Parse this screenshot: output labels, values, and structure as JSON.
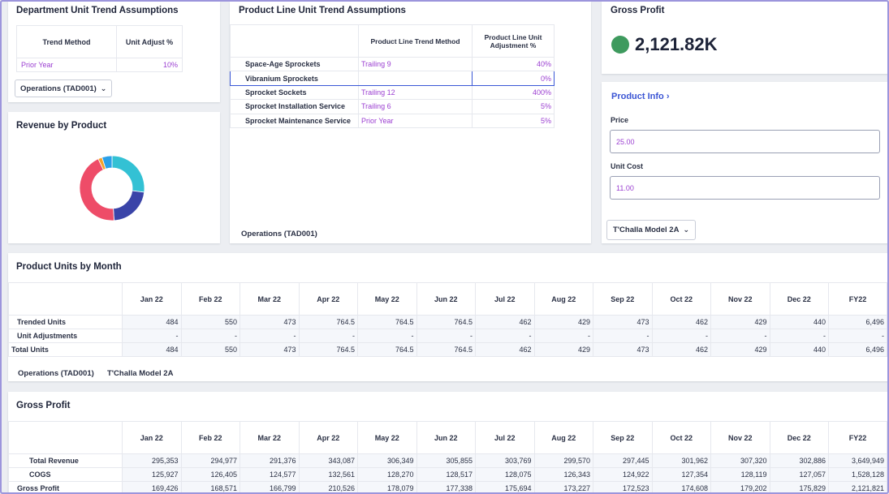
{
  "dept_trend": {
    "title": "Department Unit Trend Assumptions",
    "headers": [
      "Trend Method",
      "Unit Adjust %"
    ],
    "row": {
      "method": "Prior Year",
      "adjust": "10%"
    },
    "dropdown": "Operations (TAD001)"
  },
  "revenue": {
    "title": "Revenue by Product"
  },
  "product_line": {
    "title": "Product Line Unit Trend Assumptions",
    "headers": [
      "",
      "Product Line Trend Method",
      "Product Line Unit Adjustment %"
    ],
    "rows": [
      {
        "name": "Space-Age Sprockets",
        "method": "Trailing 9",
        "adjust": "40%"
      },
      {
        "name": "Vibranium Sprockets",
        "method": "",
        "adjust": "0%"
      },
      {
        "name": "Sprocket Sockets",
        "method": "Trailing 12",
        "adjust": "400%"
      },
      {
        "name": "Sprocket Installation Service",
        "method": "Trailing 6",
        "adjust": "5%"
      },
      {
        "name": "Sprocket Maintenance Service",
        "method": "Prior Year",
        "adjust": "5%"
      }
    ],
    "footer": "Operations (TAD001)"
  },
  "gross_profit_kpi": {
    "title": "Gross Profit",
    "value": "2,121.82K",
    "status_color": "#3e9a5e"
  },
  "product_info": {
    "link": "Product Info",
    "price_label": "Price",
    "price_value": "25.00",
    "cost_label": "Unit Cost",
    "cost_value": "11.00",
    "dropdown": "T'Challa Model 2A"
  },
  "units_by_month": {
    "title": "Product Units by Month",
    "months": [
      "Jan 22",
      "Feb 22",
      "Mar 22",
      "Apr 22",
      "May 22",
      "Jun 22",
      "Jul 22",
      "Aug 22",
      "Sep 22",
      "Oct 22",
      "Nov 22",
      "Dec 22",
      "FY22"
    ],
    "rows": [
      {
        "label": "Trended Units",
        "values": [
          "484",
          "550",
          "473",
          "764.5",
          "764.5",
          "764.5",
          "462",
          "429",
          "473",
          "462",
          "429",
          "440",
          "6,496"
        ]
      },
      {
        "label": "Unit Adjustments",
        "values": [
          "-",
          "-",
          "-",
          "-",
          "-",
          "-",
          "-",
          "-",
          "-",
          "-",
          "-",
          "-",
          "-"
        ]
      },
      {
        "label": "Total Units",
        "values": [
          "484",
          "550",
          "473",
          "764.5",
          "764.5",
          "764.5",
          "462",
          "429",
          "473",
          "462",
          "429",
          "440",
          "6,496"
        ]
      }
    ],
    "footer_dept": "Operations (TAD001)",
    "footer_product": "T'Challa Model 2A"
  },
  "gross_profit_table": {
    "title": "Gross Profit",
    "months": [
      "Jan 22",
      "Feb 22",
      "Mar 22",
      "Apr 22",
      "May 22",
      "Jun 22",
      "Jul 22",
      "Aug 22",
      "Sep 22",
      "Oct 22",
      "Nov 22",
      "Dec 22",
      "FY22"
    ],
    "rows": [
      {
        "label": "Total Revenue",
        "values": [
          "295,353",
          "294,977",
          "291,376",
          "343,087",
          "306,349",
          "305,855",
          "303,769",
          "299,570",
          "297,445",
          "301,962",
          "307,320",
          "302,886",
          "3,649,949"
        ]
      },
      {
        "label": "COGS",
        "values": [
          "125,927",
          "126,405",
          "124,577",
          "132,561",
          "128,270",
          "128,517",
          "128,075",
          "126,343",
          "124,922",
          "127,354",
          "128,119",
          "127,057",
          "1,528,128"
        ]
      },
      {
        "label": "Gross Profit",
        "values": [
          "169,426",
          "168,571",
          "166,799",
          "210,526",
          "178,079",
          "177,338",
          "175,694",
          "173,227",
          "172,523",
          "174,608",
          "179,202",
          "175,829",
          "2,121,821"
        ]
      }
    ]
  },
  "chart_data": {
    "type": "pie",
    "donut": true,
    "slices": [
      {
        "share": 0.27,
        "color": "#33c1d4"
      },
      {
        "share": 0.22,
        "color": "#3a44a8"
      },
      {
        "share": 0.44,
        "color": "#ee4c68"
      },
      {
        "share": 0.02,
        "color": "#f5a12b"
      },
      {
        "share": 0.05,
        "color": "#2aa0e8"
      }
    ]
  }
}
